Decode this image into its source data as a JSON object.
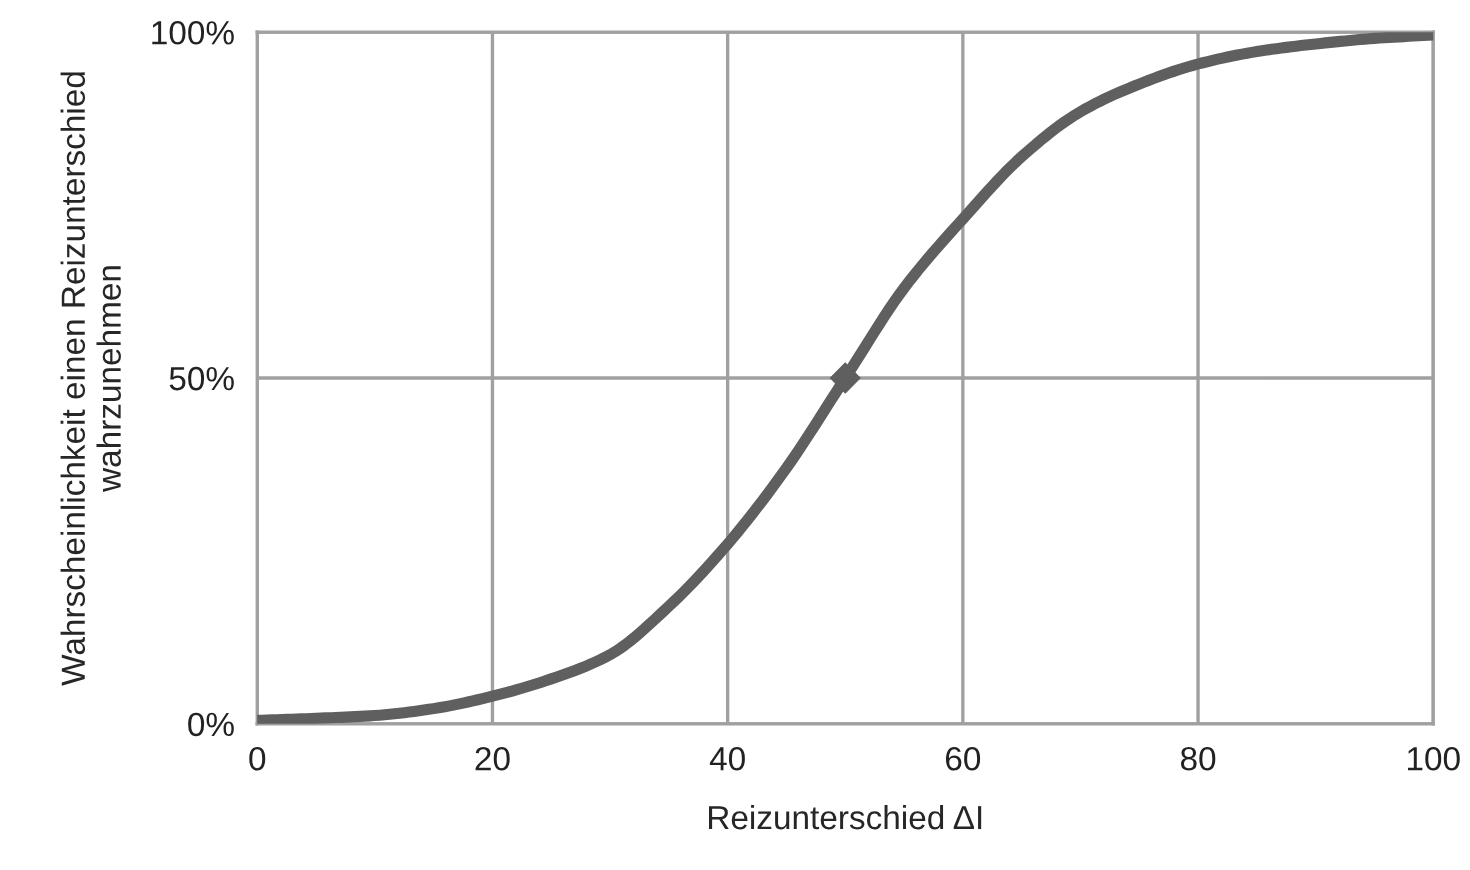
{
  "chart_data": {
    "type": "line",
    "xlabel": "Reizunterschied ΔI",
    "ylabel": "Wahrscheinlichkeit einen Reizunterschied\nwahrzunehmen",
    "x": [
      0,
      5,
      10,
      15,
      20,
      25,
      30,
      35,
      40,
      45,
      50,
      55,
      60,
      65,
      70,
      75,
      80,
      85,
      90,
      95,
      100
    ],
    "series": [
      {
        "color": "#5f5f5f",
        "marker": "none",
        "values": [
          0.5,
          0.8,
          1.2,
          2.2,
          4,
          6.5,
          10,
          17,
          26,
          37,
          50,
          63,
          73,
          82,
          88.5,
          92.5,
          95.4,
          97.2,
          98.3,
          99.1,
          99.6
        ]
      },
      {
        "type": "scatter",
        "color": "#5f5f5f",
        "marker": "diamond",
        "x": [
          50
        ],
        "values": [
          50
        ]
      }
    ],
    "xlim": [
      0,
      100
    ],
    "xticks": [
      0,
      20,
      40,
      60,
      80,
      100
    ],
    "ylim": [
      0,
      100
    ],
    "yticks": [
      {
        "value": 0,
        "label": "0%"
      },
      {
        "value": 50,
        "label": "50%"
      },
      {
        "value": 100,
        "label": "100%"
      }
    ],
    "grid": true
  }
}
